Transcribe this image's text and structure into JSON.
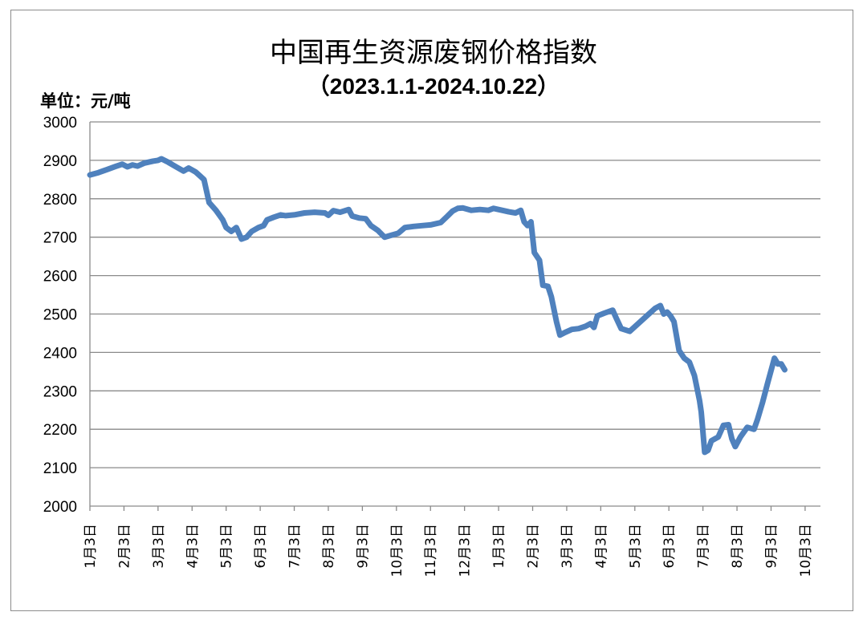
{
  "chart_data": {
    "type": "line",
    "title": "中国再生资源废钢价格指数",
    "subtitle": "（2023.1.1-2024.10.22）",
    "ylabel": "单位：元/吨",
    "xlabel": "",
    "ylim": [
      2000,
      3000
    ],
    "yticks": [
      2000,
      2100,
      2200,
      2300,
      2400,
      2500,
      2600,
      2700,
      2800,
      2900,
      3000
    ],
    "grid": true,
    "legend": "none",
    "line_color": "#4F81BD",
    "x_tick_labels": [
      "1月3日",
      "2月3日",
      "3月3日",
      "4月3日",
      "5月3日",
      "6月3日",
      "7月3日",
      "8月3日",
      "9月3日",
      "10月3日",
      "11月3日",
      "12月3日",
      "1月3日",
      "2月3日",
      "3月3日",
      "4月3日",
      "5月3日",
      "6月3日",
      "7月3日",
      "8月3日",
      "9月3日",
      "10月3日"
    ],
    "series": [
      {
        "values": [
          [
            0,
            2862
          ],
          [
            0.25,
            2868
          ],
          [
            0.5,
            2876
          ],
          [
            0.75,
            2884
          ],
          [
            0.95,
            2890
          ],
          [
            1.1,
            2883
          ],
          [
            1.25,
            2888
          ],
          [
            1.4,
            2885
          ],
          [
            1.6,
            2893
          ],
          [
            1.85,
            2898
          ],
          [
            2.0,
            2900
          ],
          [
            2.1,
            2904
          ],
          [
            2.3,
            2895
          ],
          [
            2.55,
            2882
          ],
          [
            2.75,
            2872
          ],
          [
            2.9,
            2880
          ],
          [
            3.1,
            2870
          ],
          [
            3.25,
            2858
          ],
          [
            3.35,
            2850
          ],
          [
            3.5,
            2790
          ],
          [
            3.7,
            2770
          ],
          [
            3.9,
            2745
          ],
          [
            4.0,
            2725
          ],
          [
            4.15,
            2715
          ],
          [
            4.3,
            2725
          ],
          [
            4.45,
            2695
          ],
          [
            4.6,
            2700
          ],
          [
            4.75,
            2715
          ],
          [
            4.95,
            2725
          ],
          [
            5.1,
            2730
          ],
          [
            5.2,
            2745
          ],
          [
            5.4,
            2752
          ],
          [
            5.6,
            2758
          ],
          [
            5.75,
            2756
          ],
          [
            6.0,
            2758
          ],
          [
            6.3,
            2763
          ],
          [
            6.6,
            2765
          ],
          [
            6.9,
            2763
          ],
          [
            7.0,
            2757
          ],
          [
            7.15,
            2769
          ],
          [
            7.35,
            2765
          ],
          [
            7.6,
            2772
          ],
          [
            7.7,
            2755
          ],
          [
            7.9,
            2750
          ],
          [
            8.1,
            2748
          ],
          [
            8.25,
            2730
          ],
          [
            8.45,
            2718
          ],
          [
            8.65,
            2700
          ],
          [
            8.85,
            2705
          ],
          [
            9.05,
            2710
          ],
          [
            9.25,
            2725
          ],
          [
            9.5,
            2728
          ],
          [
            9.75,
            2730
          ],
          [
            10.0,
            2732
          ],
          [
            10.3,
            2738
          ],
          [
            10.5,
            2755
          ],
          [
            10.65,
            2768
          ],
          [
            10.8,
            2775
          ],
          [
            10.95,
            2776
          ],
          [
            11.2,
            2770
          ],
          [
            11.45,
            2772
          ],
          [
            11.7,
            2770
          ],
          [
            11.85,
            2775
          ],
          [
            12.05,
            2771
          ],
          [
            12.3,
            2766
          ],
          [
            12.5,
            2763
          ],
          [
            12.65,
            2770
          ],
          [
            12.75,
            2740
          ],
          [
            12.85,
            2730
          ],
          [
            12.95,
            2740
          ],
          [
            13.05,
            2660
          ],
          [
            13.2,
            2640
          ],
          [
            13.3,
            2575
          ],
          [
            13.45,
            2572
          ],
          [
            13.55,
            2545
          ],
          [
            13.7,
            2480
          ],
          [
            13.8,
            2445
          ],
          [
            13.95,
            2452
          ],
          [
            14.15,
            2460
          ],
          [
            14.35,
            2462
          ],
          [
            14.55,
            2468
          ],
          [
            14.7,
            2475
          ],
          [
            14.8,
            2465
          ],
          [
            14.9,
            2495
          ],
          [
            15.1,
            2502
          ],
          [
            15.35,
            2510
          ],
          [
            15.45,
            2490
          ],
          [
            15.6,
            2462
          ],
          [
            15.85,
            2455
          ],
          [
            16.1,
            2475
          ],
          [
            16.35,
            2495
          ],
          [
            16.6,
            2515
          ],
          [
            16.75,
            2522
          ],
          [
            16.85,
            2500
          ],
          [
            16.95,
            2505
          ],
          [
            17.05,
            2495
          ],
          [
            17.15,
            2480
          ],
          [
            17.3,
            2405
          ],
          [
            17.45,
            2385
          ],
          [
            17.6,
            2375
          ],
          [
            17.75,
            2340
          ],
          [
            17.9,
            2275
          ],
          [
            17.95,
            2245
          ],
          [
            18.05,
            2140
          ],
          [
            18.15,
            2145
          ],
          [
            18.25,
            2170
          ],
          [
            18.45,
            2180
          ],
          [
            18.6,
            2210
          ],
          [
            18.75,
            2212
          ],
          [
            18.85,
            2175
          ],
          [
            18.95,
            2155
          ],
          [
            19.1,
            2180
          ],
          [
            19.3,
            2205
          ],
          [
            19.5,
            2200
          ],
          [
            19.6,
            2225
          ],
          [
            19.75,
            2270
          ],
          [
            19.9,
            2320
          ],
          [
            20.1,
            2385
          ],
          [
            20.2,
            2370
          ],
          [
            20.3,
            2370
          ],
          [
            20.4,
            2355
          ]
        ]
      }
    ]
  }
}
